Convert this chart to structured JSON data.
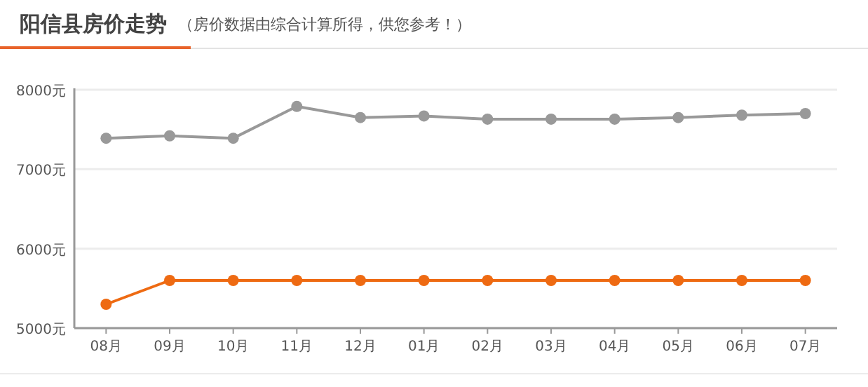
{
  "chart_data": {
    "type": "line",
    "title": "阳信县房价走势",
    "subtitle": "（房价数据由综合计算所得，供您参考！）",
    "categories": [
      "08月",
      "09月",
      "10月",
      "11月",
      "12月",
      "01月",
      "02月",
      "03月",
      "04月",
      "05月",
      "06月",
      "07月"
    ],
    "series": [
      {
        "color": "#999999",
        "values": [
          7390,
          7420,
          7390,
          7790,
          7650,
          7670,
          7630,
          7630,
          7630,
          7650,
          7680,
          7700
        ]
      },
      {
        "color": "#ee6a12",
        "values": [
          5300,
          5600,
          5600,
          5600,
          5600,
          5600,
          5600,
          5600,
          5600,
          5600,
          5600,
          5600
        ]
      }
    ],
    "ylim": [
      5000,
      8000
    ],
    "yticks": [
      {
        "value": 5000,
        "label": "5000元"
      },
      {
        "value": 6000,
        "label": "6000元"
      },
      {
        "value": 7000,
        "label": "7000元"
      },
      {
        "value": 8000,
        "label": "8000元"
      }
    ],
    "grid": "y",
    "marker": "circle",
    "line_style": "solid"
  }
}
